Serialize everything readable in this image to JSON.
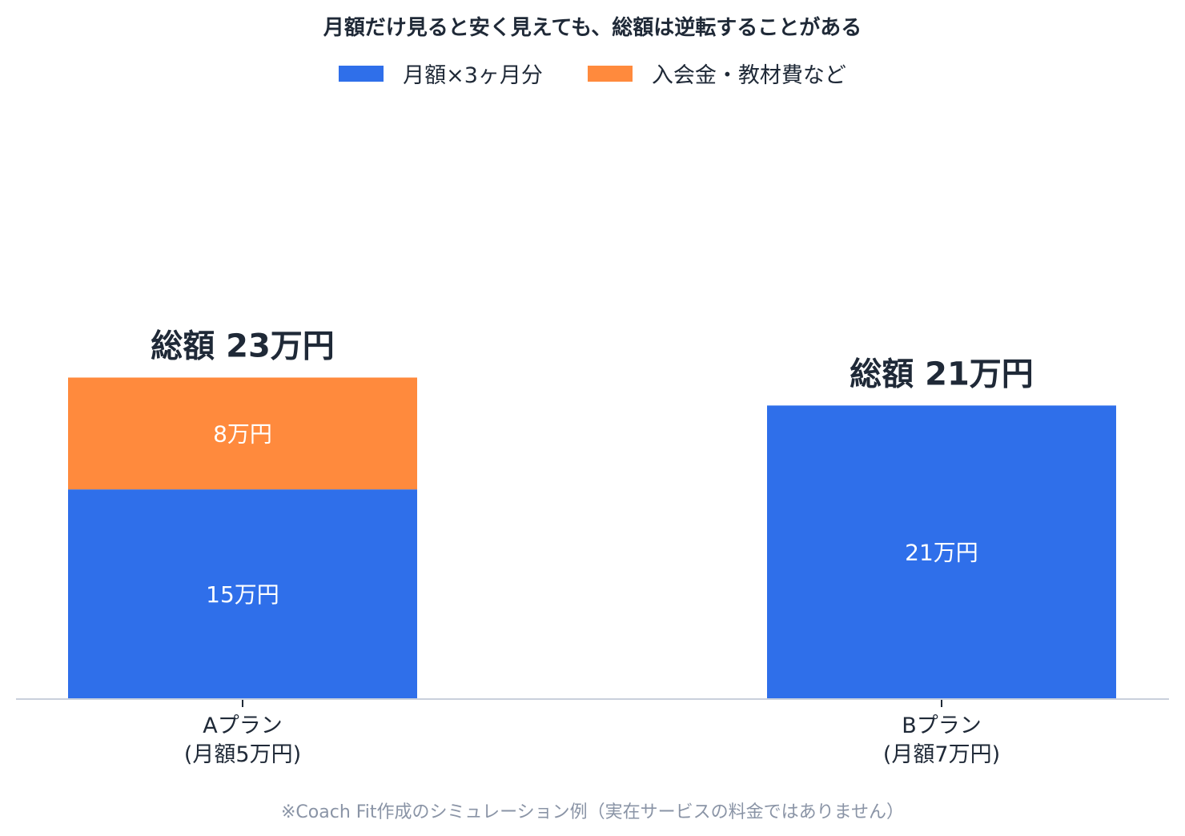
{
  "chart_data": {
    "type": "bar",
    "stacked": true,
    "title": "月額だけ見ると安く見えても、総額は逆転することがある",
    "categories": [
      {
        "line1": "Aプラン",
        "line2": "(月額5万円)"
      },
      {
        "line1": "Bプラン",
        "line2": "(月額7万円)"
      }
    ],
    "series": [
      {
        "name": "月額×3ヶ月分",
        "color": "#2f6fea",
        "values": [
          15,
          21
        ],
        "labels": [
          "15万円",
          "21万円"
        ]
      },
      {
        "name": "入会金・教材費など",
        "color": "#ff8a3d",
        "values": [
          8,
          0
        ],
        "labels": [
          "8万円",
          ""
        ]
      }
    ],
    "totals": [
      23,
      21
    ],
    "total_labels": [
      "総額 23万円",
      "総額 21万円"
    ],
    "ylim": [
      0,
      29.1
    ],
    "grid": false,
    "legend_position": "top-center",
    "axis_color": "#c9d0dc"
  },
  "footnote": "※Coach Fit作成のシミュレーション例（実在サービスの料金ではありません）"
}
